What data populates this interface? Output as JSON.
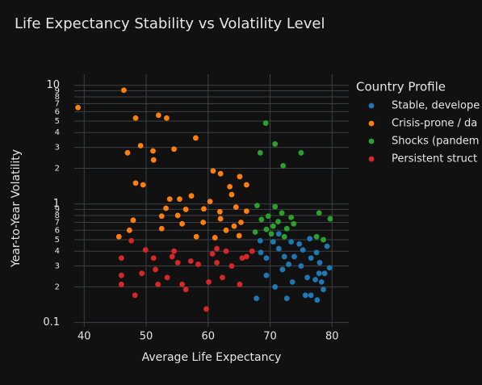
{
  "chart_data": {
    "type": "scatter",
    "title": "Life Expectancy Stability vs Volatility Level",
    "x_label": "Average Life Expectancy",
    "y_label": "Year-to-Year Volatility",
    "legend_title": "Country Profile",
    "legend_position": "right",
    "log_y": true,
    "grid": true,
    "xlim": [
      38.4,
      82.7
    ],
    "xticks": [
      40,
      50,
      60,
      70,
      80
    ],
    "ylim": [
      0.092,
      12.4
    ],
    "yticks": [
      0.1,
      {
        "value": 0.2,
        "label": "2"
      },
      {
        "value": 0.3,
        "label": "3"
      },
      {
        "value": 0.4,
        "label": "4"
      },
      {
        "value": 0.5,
        "label": "5"
      },
      {
        "value": 0.6,
        "label": "6"
      },
      {
        "value": 0.7,
        "label": "7"
      },
      {
        "value": 0.8,
        "label": "8"
      },
      {
        "value": 0.9,
        "label": "9"
      },
      1,
      2,
      3,
      4,
      5,
      6,
      7,
      8,
      9,
      10
    ],
    "series": [
      {
        "name": "Stable, develope",
        "color": "#1f77b4",
        "x": [
          68.4,
          69.4,
          70.5,
          71.4,
          72,
          73,
          73.4,
          73.9,
          75,
          76,
          76.6,
          77.3,
          77.9,
          78.3,
          78.6,
          79.6,
          79.2,
          75.3,
          76.4,
          77.5,
          67.8,
          70.8,
          72.7,
          73.6,
          75.7,
          77.6,
          69.4,
          71.4,
          74.7,
          76.6,
          78,
          78.8,
          68.5,
          72.3
        ],
        "values": [
          0.49,
          0.35,
          0.48,
          0.42,
          0.28,
          0.31,
          0.48,
          0.36,
          0.3,
          0.24,
          0.35,
          0.23,
          0.26,
          0.22,
          0.19,
          0.29,
          0.44,
          0.41,
          0.51,
          0.39,
          0.16,
          0.2,
          0.16,
          0.22,
          0.17,
          0.155,
          0.25,
          0.56,
          0.46,
          0.17,
          0.32,
          0.26,
          0.39,
          0.36
        ]
      },
      {
        "name": "Crisis-prone / da",
        "color": "#ff7f0e",
        "x": [
          39,
          46.4,
          48.3,
          53.3,
          52,
          49.1,
          47,
          51.1,
          54.5,
          58,
          48.3,
          49.5,
          51.2,
          60.8,
          62,
          65.1,
          63.8,
          63.5,
          66.2,
          47.9,
          47.3,
          45.6,
          52.5,
          53.2,
          53.8,
          55.4,
          57.3,
          56.4,
          58.1,
          55.8,
          59.3,
          59.2,
          61.1,
          62,
          62.9,
          64.5,
          65.3,
          65,
          64.2,
          60.3,
          61.9,
          66.2,
          52.5,
          55.1
        ],
        "values": [
          6.5,
          9.1,
          5.3,
          5.3,
          5.6,
          3.1,
          2.7,
          2.8,
          2.9,
          3.6,
          1.5,
          1.45,
          2.35,
          1.9,
          1.8,
          1.7,
          1.2,
          1.4,
          1.45,
          0.73,
          0.6,
          0.53,
          0.79,
          0.92,
          1.1,
          1.1,
          1.17,
          0.9,
          0.53,
          0.68,
          0.91,
          0.7,
          0.52,
          0.75,
          0.6,
          0.94,
          0.7,
          0.54,
          0.65,
          1.05,
          0.86,
          0.87,
          0.62,
          0.8
        ]
      },
      {
        "name": "Shocks (pandem",
        "color": "#2ca02c",
        "x": [
          69.3,
          70.8,
          68.4,
          75,
          72.1,
          67.9,
          68.6,
          69.7,
          70.5,
          71.3,
          71.9,
          72.7,
          73.4,
          73.8,
          69.4,
          67.6,
          77.9,
          79.7,
          78.6,
          77.5,
          70.8,
          70.2,
          72.3
        ],
        "values": [
          4.8,
          3.2,
          2.7,
          2.7,
          2.1,
          0.97,
          0.74,
          0.79,
          0.65,
          0.71,
          0.84,
          0.62,
          0.77,
          0.68,
          0.61,
          0.58,
          0.84,
          0.75,
          0.5,
          0.53,
          0.95,
          0.56,
          0.53
        ]
      },
      {
        "name": "Persistent struct",
        "color": "#d62728",
        "x": [
          46,
          46,
          47.6,
          49.3,
          49.9,
          51.2,
          51.5,
          51.9,
          53.4,
          54.2,
          55.1,
          55.8,
          57.2,
          58.4,
          60.1,
          60.7,
          61.4,
          62.3,
          62.9,
          63.8,
          65.1,
          65.5,
          66.2,
          67.1,
          59.7,
          46,
          48.2,
          54.5,
          61.4,
          56.4
        ],
        "values": [
          0.25,
          0.35,
          0.49,
          0.26,
          0.41,
          0.35,
          0.28,
          0.21,
          0.24,
          0.36,
          0.32,
          0.21,
          0.33,
          0.31,
          0.22,
          0.38,
          0.32,
          0.24,
          0.4,
          0.3,
          0.21,
          0.35,
          0.36,
          0.4,
          0.13,
          0.21,
          0.17,
          0.4,
          0.42,
          0.19
        ]
      }
    ]
  }
}
